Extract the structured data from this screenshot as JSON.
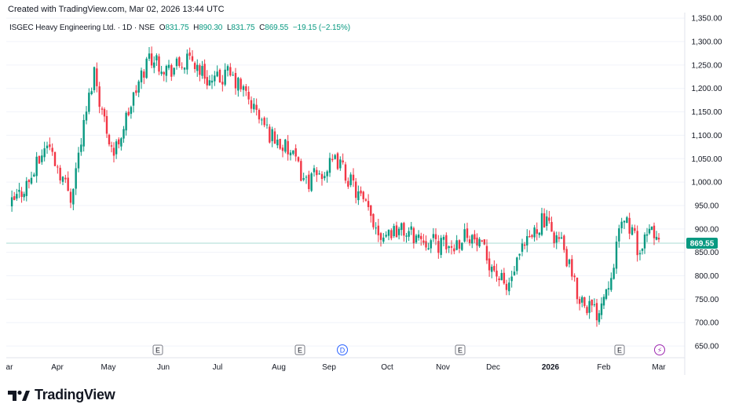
{
  "header": {
    "created_text": "Created with TradingView.com, Mar 02, 2026 13:44 UTC"
  },
  "legend": {
    "symbol": "ISGEC Heavy Engineering Ltd. · 1D · NSE",
    "o_label": "O",
    "o_value": "831.75",
    "h_label": "H",
    "h_value": "890.30",
    "l_label": "L",
    "l_value": "831.75",
    "c_label": "C",
    "c_value": "869.55",
    "change": "−19.15 (−2.15%)"
  },
  "price_badge": "869.55",
  "footer": {
    "brand": "TradingView",
    "logo_icon": "tradingview-logo-icon"
  },
  "colors": {
    "up": "#089981",
    "down": "#f23645",
    "text": "#131722",
    "grid": "#f0f3fa",
    "price_line": "#089981"
  },
  "chart_data": {
    "type": "candlestick",
    "x_axis": {
      "tick_labels": [
        "ar",
        "Apr",
        "May",
        "Jun",
        "Jul",
        "Aug",
        "Sep",
        "Oct",
        "Nov",
        "Dec",
        "2026",
        "Feb",
        "Mar"
      ]
    },
    "y_axis": {
      "range": [
        625,
        1362
      ],
      "tick_values": [
        650,
        700,
        750,
        800,
        850,
        900,
        950,
        1000,
        1050,
        1100,
        1150,
        1200,
        1250,
        1300,
        1350
      ],
      "tick_labels": [
        "650.00",
        "700.00",
        "750.00",
        "800.00",
        "850.00",
        "900.00",
        "950.00",
        "1,000.00",
        "1,050.00",
        "1,100.00",
        "1,150.00",
        "1,200.00",
        "1,250.00",
        "1,300.00",
        "1,350.00"
      ]
    },
    "last_price": 869.55,
    "event_markers": [
      {
        "label": "E",
        "type": "earnings",
        "near": "Jun"
      },
      {
        "label": "E",
        "type": "earnings",
        "near": "Aug-Sep"
      },
      {
        "label": "D",
        "type": "dividend",
        "near": "Sep"
      },
      {
        "label": "E",
        "type": "earnings",
        "near": "Nov"
      },
      {
        "label": "E",
        "type": "earnings",
        "near": "Feb"
      },
      {
        "label": "⚡",
        "type": "split",
        "near": "Mar"
      }
    ],
    "close_path": [
      [
        "Mar",
        945
      ],
      [
        "Apr",
        1010
      ],
      [
        "Apr",
        1085
      ],
      [
        "Apr",
        970
      ],
      [
        "May",
        1240
      ],
      [
        "May",
        1150
      ],
      [
        "May",
        1060
      ],
      [
        "May",
        1180
      ],
      [
        "Jun",
        1270
      ],
      [
        "Jun",
        1240
      ],
      [
        "Jun",
        1260
      ],
      [
        "Jul",
        1210
      ],
      [
        "Jul",
        1230
      ],
      [
        "Jul",
        1195
      ],
      [
        "Aug",
        1110
      ],
      [
        "Aug",
        1060
      ],
      [
        "Aug",
        1000
      ],
      [
        "Sep",
        1020
      ],
      [
        "Sep",
        1045
      ],
      [
        "Sep",
        990
      ],
      [
        "Oct",
        890
      ],
      [
        "Oct",
        900
      ],
      [
        "Oct",
        885
      ],
      [
        "Nov",
        870
      ],
      [
        "Nov",
        860
      ],
      [
        "Nov",
        895
      ],
      [
        "Dec",
        840
      ],
      [
        "Dec",
        770
      ],
      [
        "Dec",
        850
      ],
      [
        "2026",
        920
      ],
      [
        "2026",
        870
      ],
      [
        "2026",
        760
      ],
      [
        "Feb",
        720
      ],
      [
        "Feb",
        790
      ],
      [
        "Feb",
        930
      ],
      [
        "Mar",
        850
      ],
      [
        "Mar",
        900
      ],
      [
        "Mar",
        869.55
      ]
    ]
  }
}
